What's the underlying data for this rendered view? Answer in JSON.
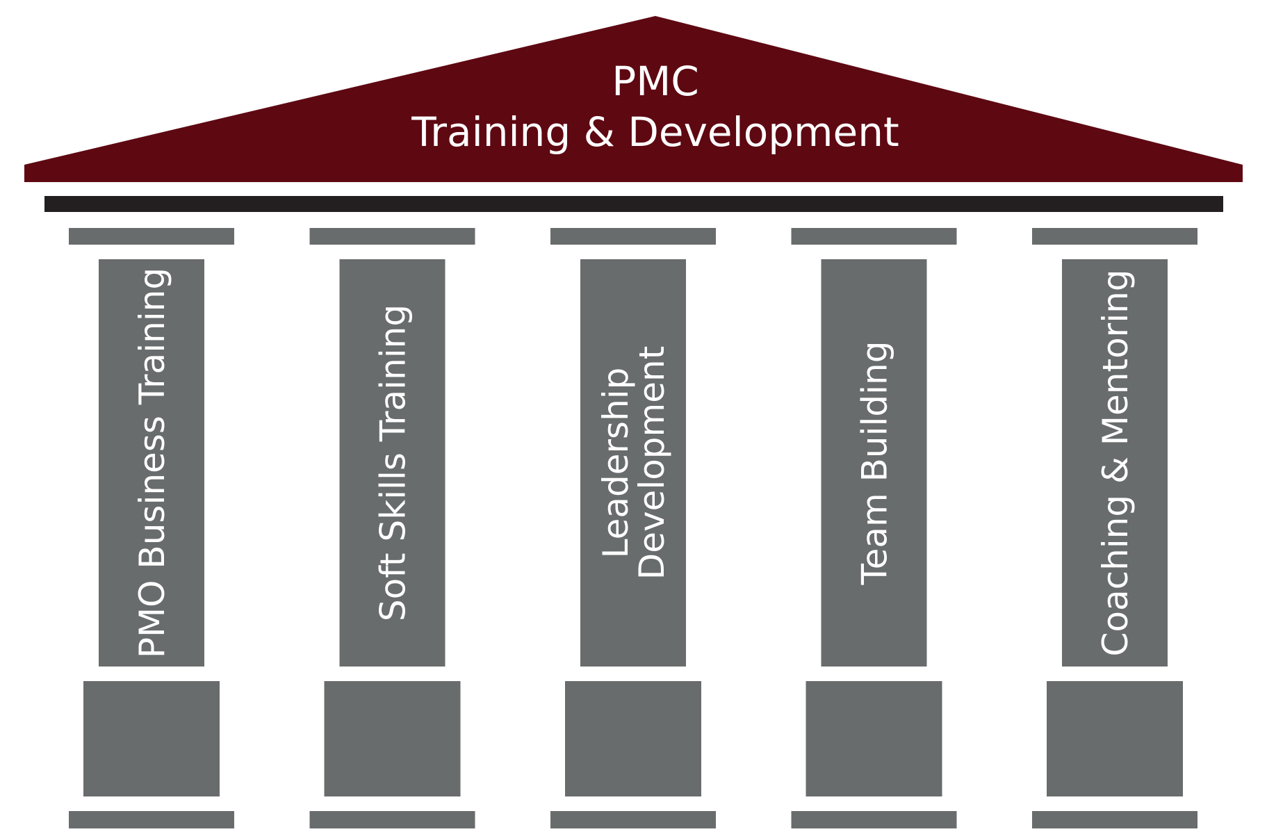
{
  "roof": {
    "title_line1": "PMC",
    "title_line2": "Training & Development",
    "color": "#5e0812"
  },
  "beam": {
    "color": "#231f20"
  },
  "pillar_color": "#696c6c",
  "pillars": [
    {
      "lines": [
        "PMO Business Training"
      ]
    },
    {
      "lines": [
        "Soft Skills Training"
      ]
    },
    {
      "lines": [
        "Leadership",
        "Development"
      ]
    },
    {
      "lines": [
        "Team Building"
      ]
    },
    {
      "lines": [
        "Coaching & Mentoring"
      ]
    }
  ]
}
